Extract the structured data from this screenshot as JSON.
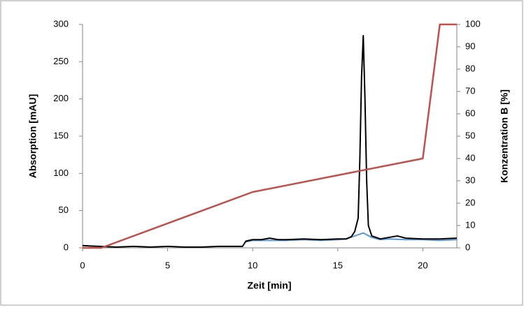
{
  "chart_data": {
    "type": "line",
    "xlabel": "Zeit [min]",
    "ylabel": "Absorption  [mAU]",
    "y2label": "Konzentration  B  [%]",
    "xlim": [
      0,
      22
    ],
    "xticks": [
      0,
      5,
      10,
      15,
      20
    ],
    "ylim": [
      0,
      300
    ],
    "yticks": [
      0,
      50,
      100,
      150,
      200,
      250,
      300
    ],
    "y2lim": [
      0,
      100
    ],
    "y2ticks": [
      0,
      10,
      20,
      30,
      40,
      50,
      60,
      70,
      80,
      90,
      100
    ],
    "grid": false,
    "series": [
      {
        "color": "#5b9bd5",
        "x": [
          9.6,
          10,
          11,
          12,
          13,
          14,
          15,
          15.5,
          16,
          16.5,
          17,
          17.5,
          18,
          19,
          20,
          21,
          22
        ],
        "values": [
          8,
          10,
          10,
          10,
          11,
          10,
          11,
          12,
          16,
          20,
          14,
          11,
          12,
          11,
          11,
          10,
          11
        ]
      },
      {
        "color": "#000000",
        "x": [
          0,
          1,
          2,
          3,
          4,
          5,
          6,
          7,
          8,
          9,
          9.4,
          9.6,
          10,
          10.5,
          11,
          11.5,
          12,
          13,
          14,
          15,
          15.5,
          15.8,
          16.0,
          16.2,
          16.3,
          16.4,
          16.5,
          16.6,
          16.7,
          16.8,
          17,
          17.5,
          18,
          18.5,
          19,
          20,
          21,
          22
        ],
        "values": [
          3,
          2,
          1,
          2,
          1,
          2,
          1,
          1,
          2,
          2,
          2,
          9,
          11,
          11,
          13,
          11,
          11,
          12,
          11,
          12,
          12,
          15,
          22,
          40,
          120,
          230,
          285,
          200,
          90,
          30,
          16,
          12,
          14,
          16,
          13,
          12,
          12,
          13
        ]
      },
      {
        "color": "#c0504d",
        "axis": "y2",
        "x": [
          0,
          1.1,
          10,
          20,
          21,
          22
        ],
        "values": [
          0,
          0,
          25,
          40,
          100,
          100
        ]
      }
    ]
  }
}
